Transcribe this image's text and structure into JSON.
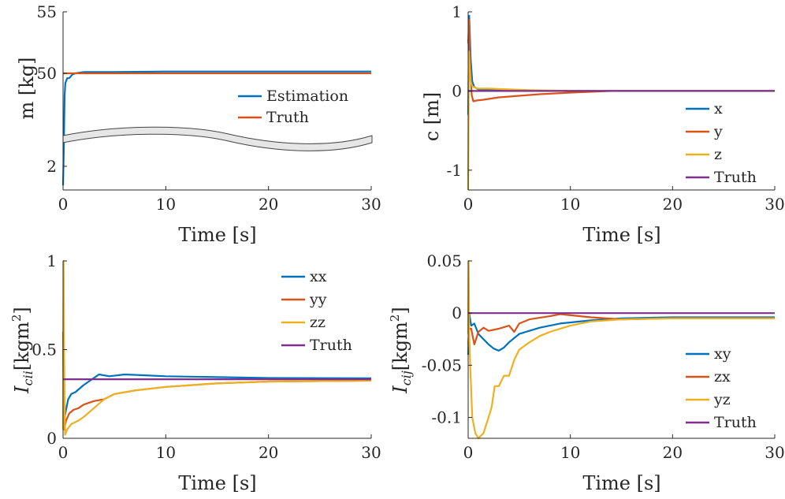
{
  "colors": {
    "blue": "#0072BD",
    "orange": "#D95319",
    "yellow": "#EDB120",
    "purple": "#7E2F8E",
    "axis": "#262626"
  },
  "chart_data": [
    {
      "type": "line",
      "ylabel": "m [kg]",
      "xlabel": "Time [s]",
      "xlim": [
        0,
        30
      ],
      "ylim_segments": {
        "upper": [
          47.5,
          55
        ],
        "lower": [
          1.5,
          2.5
        ]
      },
      "xticks": [
        "0",
        "10",
        "20",
        "30"
      ],
      "yticks": [
        "55",
        "50",
        "2"
      ],
      "axis_break": true,
      "legend_position": "right",
      "series": [
        {
          "name": "Estimation",
          "color": "#0072BD",
          "x": [
            0,
            0.08,
            0.15,
            0.22,
            0.4,
            0.6,
            0.9,
            1.2,
            2,
            5,
            10,
            20,
            30
          ],
          "y": [
            1.6,
            2.4,
            48.2,
            49.2,
            49.6,
            49.6,
            49.9,
            50.0,
            50.1,
            50.1,
            50.15,
            50.15,
            50.15
          ]
        },
        {
          "name": "Truth",
          "color": "#D95319",
          "x": [
            0,
            30
          ],
          "y": [
            50,
            50
          ]
        }
      ]
    },
    {
      "type": "line",
      "ylabel": "c [m]",
      "xlabel": "Time [s]",
      "xlim": [
        0,
        30
      ],
      "ylim": [
        -1.25,
        1
      ],
      "xticks": [
        "0",
        "10",
        "20",
        "30"
      ],
      "yticks": [
        "1",
        "0",
        "-1"
      ],
      "legend_position": "bottom-right",
      "series": [
        {
          "name": "x",
          "color": "#0072BD",
          "x": [
            0,
            0.1,
            0.25,
            0.4,
            0.6,
            1,
            2,
            4,
            7,
            10,
            15,
            30
          ],
          "y": [
            -0.3,
            0.95,
            0.4,
            0.12,
            0.05,
            0.02,
            0.01,
            0.005,
            0.002,
            0.0,
            0.0,
            0.0
          ]
        },
        {
          "name": "y",
          "color": "#D95319",
          "x": [
            0,
            0.1,
            0.2,
            0.35,
            0.5,
            0.8,
            1.5,
            3,
            5,
            7,
            10,
            14,
            30
          ],
          "y": [
            0.6,
            0.9,
            0.3,
            -0.05,
            -0.13,
            -0.12,
            -0.11,
            -0.08,
            -0.06,
            -0.04,
            -0.02,
            0.0,
            0.0
          ]
        },
        {
          "name": "z",
          "color": "#EDB120",
          "x": [
            0,
            0.08,
            0.15,
            0.25,
            0.4,
            0.7,
            1,
            2,
            4,
            6,
            8,
            12,
            30
          ],
          "y": [
            -1.25,
            0.5,
            0.3,
            0.12,
            0.06,
            0.04,
            0.03,
            0.03,
            0.02,
            0.01,
            0.005,
            0.0,
            0.0
          ]
        },
        {
          "name": "Truth",
          "color": "#7E2F8E",
          "x": [
            0,
            30
          ],
          "y": [
            0,
            0
          ]
        }
      ]
    },
    {
      "type": "line",
      "ylabel_main": "I",
      "ylabel_sub": "cii",
      "ylabel_unit": "[kgm",
      "ylabel_sup": "2",
      "ylabel_close": "]",
      "xlabel": "Time [s]",
      "xlim": [
        0,
        30
      ],
      "ylim": [
        0,
        1
      ],
      "xticks": [
        "0",
        "10",
        "20",
        "30"
      ],
      "yticks": [
        "1",
        "0.5",
        "0"
      ],
      "legend_position": "top-right",
      "series": [
        {
          "name": "xx",
          "color": "#0072BD",
          "x": [
            0,
            0.1,
            0.25,
            0.5,
            0.8,
            1.2,
            2,
            3,
            3.5,
            4.5,
            6,
            8,
            10,
            15,
            20,
            30
          ],
          "y": [
            0.5,
            0.1,
            0.15,
            0.22,
            0.25,
            0.26,
            0.3,
            0.34,
            0.36,
            0.35,
            0.36,
            0.355,
            0.35,
            0.345,
            0.34,
            0.338
          ]
        },
        {
          "name": "yy",
          "color": "#D95319",
          "x": [
            0,
            0.1,
            0.3,
            0.6,
            1,
            1.5,
            2,
            3,
            4,
            5,
            7,
            10,
            15,
            20,
            30
          ],
          "y": [
            0.6,
            0.05,
            0.1,
            0.14,
            0.16,
            0.17,
            0.19,
            0.21,
            0.22,
            0.25,
            0.27,
            0.29,
            0.31,
            0.32,
            0.325
          ]
        },
        {
          "name": "zz",
          "color": "#EDB120",
          "x": [
            0,
            0.05,
            0.1,
            0.2,
            0.4,
            0.8,
            1.5,
            2,
            3,
            4,
            5,
            7,
            10,
            15,
            20,
            30
          ],
          "y": [
            0.05,
            1.0,
            0.5,
            0.02,
            0.05,
            0.08,
            0.1,
            0.12,
            0.17,
            0.22,
            0.25,
            0.27,
            0.29,
            0.31,
            0.32,
            0.325
          ]
        },
        {
          "name": "Truth",
          "color": "#7E2F8E",
          "x": [
            0,
            30
          ],
          "y": [
            0.333,
            0.333
          ]
        }
      ]
    },
    {
      "type": "line",
      "ylabel_main": "I",
      "ylabel_sub": "cij",
      "ylabel_unit": "[kgm",
      "ylabel_sup": "2",
      "ylabel_close": "]",
      "xlabel": "Time [s]",
      "xlim": [
        0,
        30
      ],
      "ylim": [
        -0.12,
        0.05
      ],
      "xticks": [
        "0",
        "10",
        "20",
        "30"
      ],
      "yticks": [
        "0.05",
        "0",
        "-0.05",
        "-0.1"
      ],
      "legend_position": "bottom-right",
      "series": [
        {
          "name": "xy",
          "color": "#0072BD",
          "x": [
            0,
            0.1,
            0.3,
            0.6,
            1,
            1.5,
            2,
            2.5,
            3,
            3.5,
            4,
            5,
            7,
            9,
            12,
            15,
            20,
            30
          ],
          "y": [
            -0.04,
            0.0,
            -0.012,
            -0.01,
            -0.02,
            -0.025,
            -0.03,
            -0.034,
            -0.036,
            -0.033,
            -0.028,
            -0.02,
            -0.014,
            -0.01,
            -0.007,
            -0.005,
            -0.004,
            -0.004
          ]
        },
        {
          "name": "zx",
          "color": "#D95319",
          "x": [
            0,
            0.1,
            0.3,
            0.6,
            1,
            1.5,
            2,
            3,
            4,
            4.5,
            5,
            6,
            8,
            9,
            12,
            15,
            20,
            30
          ],
          "y": [
            -0.03,
            -0.015,
            -0.015,
            -0.03,
            -0.018,
            -0.014,
            -0.017,
            -0.015,
            -0.012,
            -0.018,
            -0.01,
            -0.006,
            -0.003,
            -0.001,
            -0.004,
            -0.006,
            -0.005,
            -0.005
          ]
        },
        {
          "name": "yz",
          "color": "#EDB120",
          "x": [
            0,
            0.05,
            0.1,
            0.2,
            0.4,
            0.7,
            1,
            1.5,
            2,
            2.3,
            2.6,
            3,
            3.5,
            4,
            4.5,
            5,
            6,
            7,
            8,
            10,
            12,
            15,
            20,
            30
          ],
          "y": [
            -0.02,
            0.05,
            -0.02,
            -0.05,
            -0.1,
            -0.115,
            -0.12,
            -0.115,
            -0.1,
            -0.09,
            -0.07,
            -0.07,
            -0.06,
            -0.06,
            -0.045,
            -0.035,
            -0.028,
            -0.022,
            -0.018,
            -0.012,
            -0.008,
            -0.006,
            -0.005,
            -0.005
          ]
        },
        {
          "name": "Truth",
          "color": "#7E2F8E",
          "x": [
            0,
            30
          ],
          "y": [
            0,
            0
          ]
        }
      ]
    }
  ]
}
